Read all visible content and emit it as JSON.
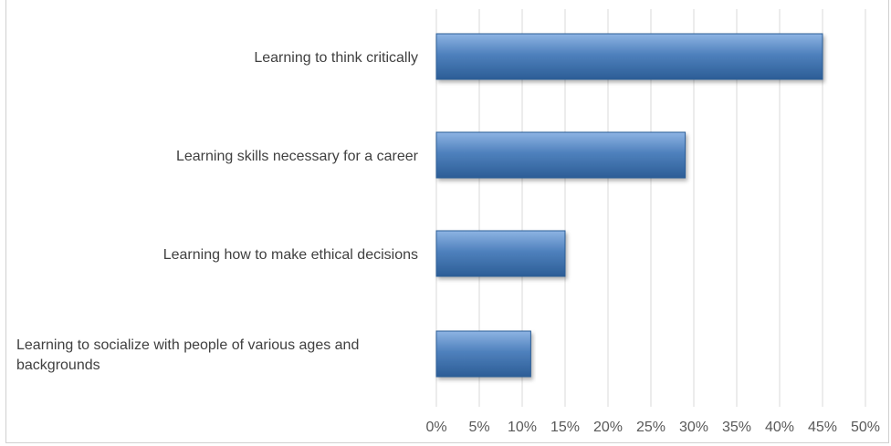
{
  "chart_data": {
    "type": "bar",
    "orientation": "horizontal",
    "categories": [
      "Learning to think critically",
      "Learning skills necessary for a career",
      "Learning how to make ethical decisions",
      "Learning to socialize with people of various ages and backgrounds"
    ],
    "category_label_lines": [
      [
        "Learning to think critically"
      ],
      [
        "Learning skills necessary for a career"
      ],
      [
        "Learning how to make ethical decisions"
      ],
      [
        "Learning to socialize with people of various ages and",
        "backgrounds"
      ]
    ],
    "values": [
      45,
      29,
      15,
      11
    ],
    "xlim": [
      0,
      50
    ],
    "x_ticks": [
      "0%",
      "5%",
      "10%",
      "15%",
      "20%",
      "25%",
      "30%",
      "35%",
      "40%",
      "45%",
      "50%"
    ],
    "grid": "vertical",
    "legend": "none",
    "bar_color": "#4f81bd",
    "bar_dark": "#2c5d96",
    "bar_light": "#8eb4e3",
    "grid_color": "#d9d9d9"
  }
}
